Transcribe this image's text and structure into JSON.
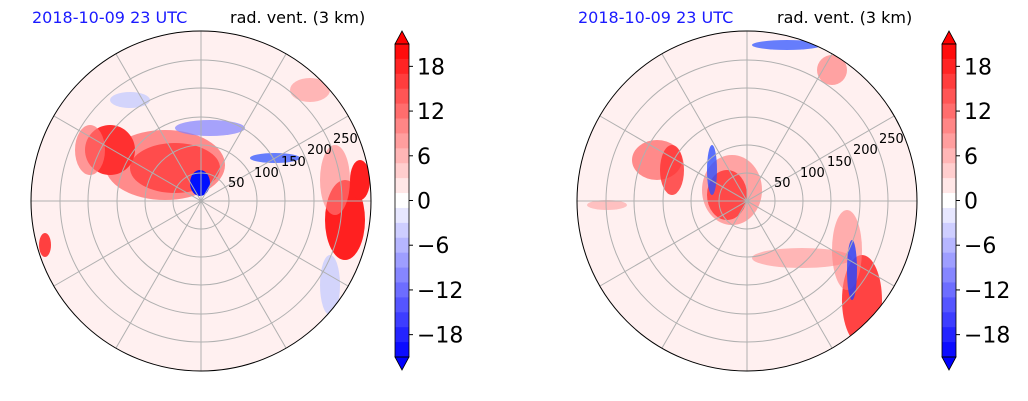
{
  "colors": {
    "title_date": "#1a1aff",
    "positive": "#ff0000",
    "negative": "#0000ff",
    "grid": "#b0b0b0",
    "background": "#fff0f0"
  },
  "chart_data": [
    {
      "type": "heatmap",
      "projection": "polar",
      "title_left": "2018-10-09 23 UTC",
      "title_right": "rad. vent. (3 km)",
      "radial_ticks": [
        "50",
        "100",
        "150",
        "200",
        "250"
      ],
      "colorbar": {
        "ticks": [
          "18",
          "12",
          "6",
          "0",
          "−6",
          "−12",
          "−18"
        ],
        "tick_values": [
          18,
          12,
          6,
          0,
          -6,
          -12,
          -18
        ],
        "vmin": -21,
        "vmax": 21,
        "extend": "both"
      }
    },
    {
      "type": "heatmap",
      "projection": "polar",
      "title_left": "2018-10-09 23 UTC",
      "title_right": "rad. vent. (3 km)",
      "radial_ticks": [
        "50",
        "100",
        "150",
        "200",
        "250"
      ],
      "colorbar": {
        "ticks": [
          "18",
          "12",
          "6",
          "0",
          "−6",
          "−12",
          "−18"
        ],
        "tick_values": [
          18,
          12,
          6,
          0,
          -6,
          -12,
          -18
        ],
        "vmin": -21,
        "vmax": 21,
        "extend": "both"
      }
    }
  ]
}
